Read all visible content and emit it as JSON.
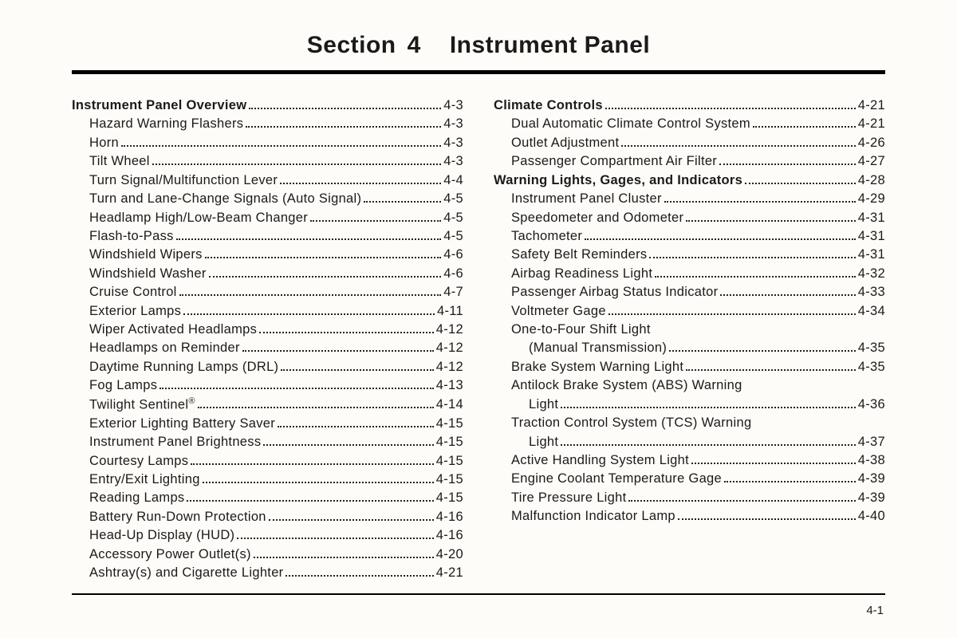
{
  "title": {
    "section_word": "Section",
    "section_num": "4",
    "name": "Instrument Panel"
  },
  "page_number": "4-1",
  "columns": [
    [
      {
        "label": "Instrument Panel Overview",
        "page": "4-3",
        "bold": true
      },
      {
        "label": "Hazard Warning Flashers",
        "page": "4-3",
        "sub": true
      },
      {
        "label": "Horn",
        "page": "4-3",
        "sub": true
      },
      {
        "label": "Tilt Wheel",
        "page": "4-3",
        "sub": true
      },
      {
        "label": "Turn Signal/Multifunction Lever",
        "page": "4-4",
        "sub": true
      },
      {
        "label": "Turn and Lane-Change Signals (Auto Signal)",
        "page": "4-5",
        "sub": true
      },
      {
        "label": "Headlamp High/Low-Beam Changer",
        "page": "4-5",
        "sub": true
      },
      {
        "label": "Flash-to-Pass",
        "page": "4-5",
        "sub": true
      },
      {
        "label": "Windshield Wipers",
        "page": "4-6",
        "sub": true
      },
      {
        "label": "Windshield Washer",
        "page": "4-6",
        "sub": true
      },
      {
        "label": "Cruise Control",
        "page": "4-7",
        "sub": true
      },
      {
        "label": "Exterior Lamps",
        "page": "4-11",
        "sub": true
      },
      {
        "label": "Wiper Activated Headlamps",
        "page": "4-12",
        "sub": true
      },
      {
        "label": "Headlamps on Reminder",
        "page": "4-12",
        "sub": true
      },
      {
        "label": "Daytime Running Lamps (DRL)",
        "page": "4-12",
        "sub": true
      },
      {
        "label": "Fog Lamps",
        "page": "4-13",
        "sub": true
      },
      {
        "label_html": "Twilight Sentinel<span class=\"sup\">®</span>",
        "page": "4-14",
        "sub": true
      },
      {
        "label": "Exterior Lighting Battery Saver",
        "page": "4-15",
        "sub": true
      },
      {
        "label": "Instrument Panel Brightness",
        "page": "4-15",
        "sub": true
      },
      {
        "label": "Courtesy Lamps",
        "page": "4-15",
        "sub": true
      },
      {
        "label": "Entry/Exit Lighting",
        "page": "4-15",
        "sub": true
      },
      {
        "label": "Reading Lamps",
        "page": "4-15",
        "sub": true
      },
      {
        "label": "Battery Run-Down Protection",
        "page": "4-16",
        "sub": true
      },
      {
        "label": "Head-Up Display (HUD)",
        "page": "4-16",
        "sub": true
      },
      {
        "label": "Accessory Power Outlet(s)",
        "page": "4-20",
        "sub": true
      },
      {
        "label": "Ashtray(s) and Cigarette Lighter",
        "page": "4-21",
        "sub": true
      }
    ],
    [
      {
        "label": "Climate Controls",
        "page": "4-21",
        "bold": true
      },
      {
        "label": "Dual Automatic Climate Control System",
        "page": "4-21",
        "sub": true
      },
      {
        "label": "Outlet Adjustment",
        "page": "4-26",
        "sub": true
      },
      {
        "label": "Passenger Compartment Air Filter",
        "page": "4-27",
        "sub": true
      },
      {
        "label": "Warning Lights, Gages, and Indicators",
        "page": "4-28",
        "bold": true
      },
      {
        "label": "Instrument Panel Cluster",
        "page": "4-29",
        "sub": true
      },
      {
        "label": "Speedometer and Odometer",
        "page": "4-31",
        "sub": true
      },
      {
        "label": "Tachometer",
        "page": "4-31",
        "sub": true
      },
      {
        "label": "Safety Belt Reminders",
        "page": "4-31",
        "sub": true
      },
      {
        "label": "Airbag Readiness Light",
        "page": "4-32",
        "sub": true
      },
      {
        "label": "Passenger Airbag Status Indicator",
        "page": "4-33",
        "sub": true
      },
      {
        "label": "Voltmeter Gage",
        "page": "4-34",
        "sub": true
      },
      {
        "multi": true,
        "line1": "One-to-Four Shift Light",
        "line2": "(Manual Transmission)",
        "page": "4-35"
      },
      {
        "label": "Brake System Warning Light",
        "page": "4-35",
        "sub": true
      },
      {
        "multi": true,
        "line1": "Antilock Brake System (ABS) Warning",
        "line2": "Light",
        "page": "4-36"
      },
      {
        "multi": true,
        "line1": "Traction Control System (TCS) Warning",
        "line2": "Light",
        "page": "4-37"
      },
      {
        "label": "Active Handling System Light",
        "page": "4-38",
        "sub": true
      },
      {
        "label": "Engine Coolant Temperature Gage",
        "page": "4-39",
        "sub": true
      },
      {
        "label": "Tire Pressure Light",
        "page": "4-39",
        "sub": true
      },
      {
        "label": "Malfunction Indicator Lamp",
        "page": "4-40",
        "sub": true
      }
    ]
  ]
}
